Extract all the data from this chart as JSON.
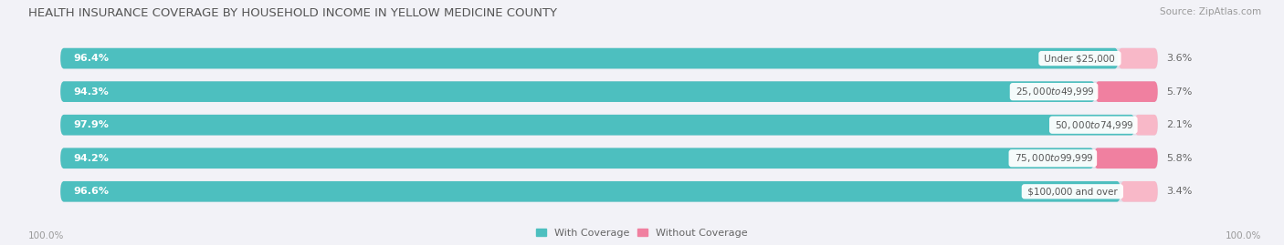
{
  "title": "HEALTH INSURANCE COVERAGE BY HOUSEHOLD INCOME IN YELLOW MEDICINE COUNTY",
  "source": "Source: ZipAtlas.com",
  "categories": [
    "Under $25,000",
    "$25,000 to $49,999",
    "$50,000 to $74,999",
    "$75,000 to $99,999",
    "$100,000 and over"
  ],
  "with_coverage": [
    96.4,
    94.3,
    97.9,
    94.2,
    96.6
  ],
  "without_coverage": [
    3.6,
    5.7,
    2.1,
    5.8,
    3.4
  ],
  "color_with": "#4DBFBF",
  "color_without": "#F080A0",
  "color_without_light": "#F8B8C8",
  "bg_color": "#F2F2F7",
  "bar_bg": "#E0E0EA",
  "title_color": "#555555",
  "source_color": "#999999",
  "label_color_white": "#FFFFFF",
  "label_color_dark": "#666666",
  "cat_label_color": "#555555",
  "title_fontsize": 9.5,
  "source_fontsize": 7.5,
  "bar_label_fontsize": 8,
  "cat_label_fontsize": 7.5,
  "wo_label_fontsize": 8,
  "legend_fontsize": 8,
  "axis_label_fontsize": 7.5,
  "x_left_label": "100.0%",
  "x_right_label": "100.0%",
  "bar_height": 0.62,
  "bar_rounding": 0.31
}
